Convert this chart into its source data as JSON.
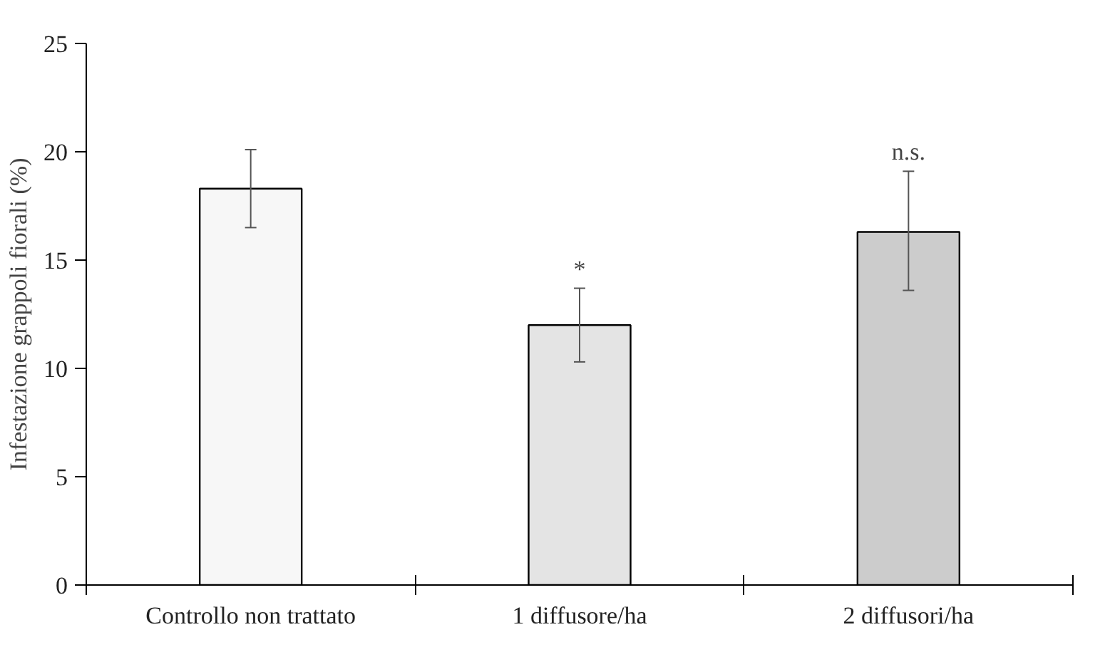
{
  "chart_data": {
    "type": "bar",
    "ylabel": "Infestazione grappoli fiorali (%)",
    "categories": [
      "Controllo non trattato",
      "1 diffusore/ha",
      "2 diffusori/ha"
    ],
    "values": [
      18.3,
      12.0,
      16.3
    ],
    "errors": [
      [
        16.5,
        20.1
      ],
      [
        10.3,
        13.7
      ],
      [
        13.6,
        19.1
      ]
    ],
    "colors": [
      "#f7f7f7",
      "#e4e4e4",
      "#cccccc"
    ],
    "ylim": [
      0,
      25
    ],
    "yticks": [
      0,
      5,
      10,
      15,
      20,
      25
    ],
    "grid": false,
    "value_labels": [
      null,
      "*",
      "n.s."
    ]
  }
}
